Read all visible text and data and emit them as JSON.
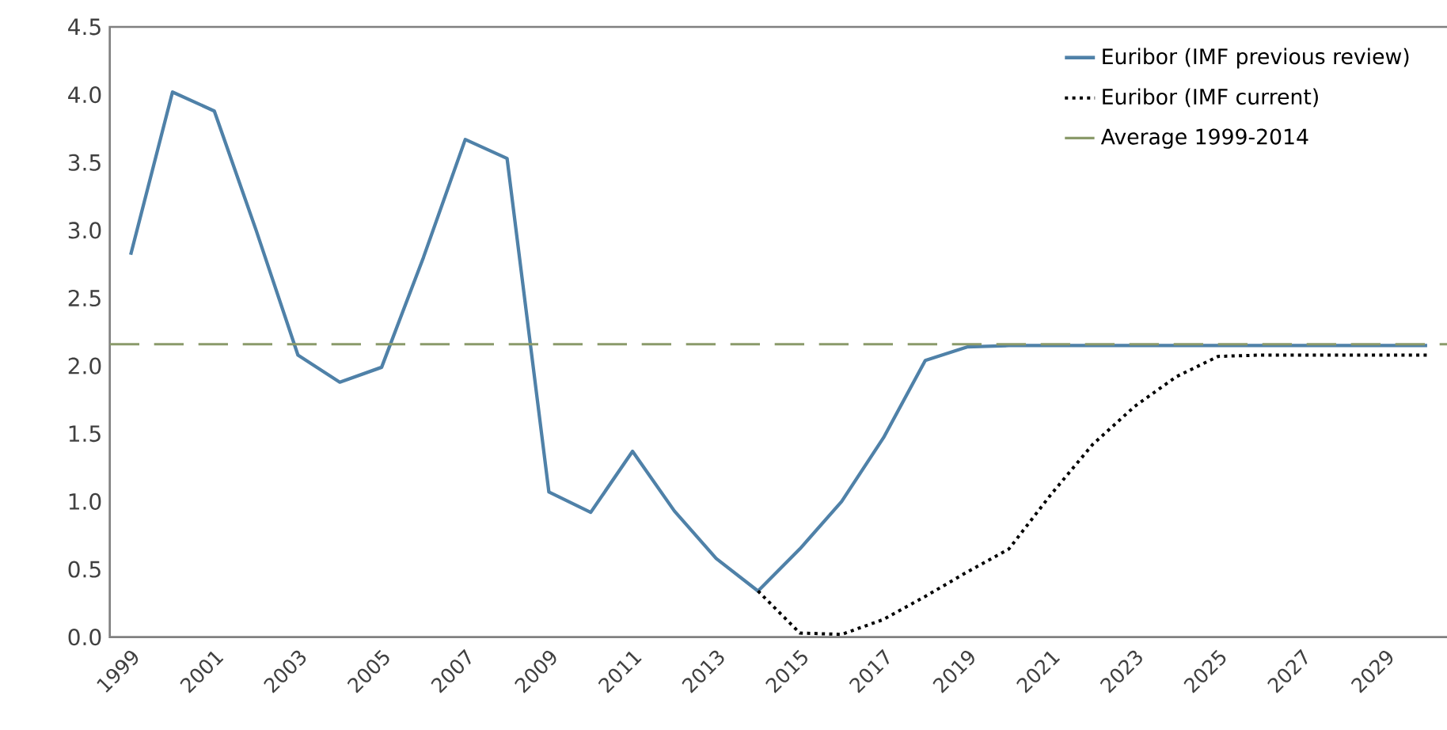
{
  "chart_data": {
    "type": "line",
    "categories": [
      "1999",
      null,
      "2001",
      null,
      "2003",
      null,
      "2005",
      null,
      "2007",
      null,
      "2009",
      null,
      "2011",
      null,
      "2013",
      null,
      "2015",
      null,
      "2017",
      null,
      "2019",
      null,
      "2021",
      null,
      "2023",
      null,
      "2025",
      null,
      "2027",
      null,
      "2029",
      null
    ],
    "series": [
      {
        "name": "Euribor (IMF previous review)",
        "color": "#4f81a8",
        "line_style": "solid",
        "values": [
          2.82,
          4.02,
          3.88,
          3.0,
          2.08,
          1.88,
          1.99,
          2.8,
          3.67,
          3.53,
          1.07,
          0.92,
          1.37,
          0.93,
          0.58,
          0.34,
          0.65,
          1.0,
          1.47,
          2.04,
          2.14,
          2.15,
          2.15,
          2.15,
          2.15,
          2.15,
          2.15,
          2.15,
          2.15,
          2.15,
          2.15,
          2.15
        ]
      },
      {
        "name": "Euribor (IMF current)",
        "color": "#000000",
        "line_style": "dotted",
        "values": [
          null,
          null,
          null,
          null,
          null,
          null,
          null,
          null,
          null,
          null,
          null,
          null,
          null,
          null,
          null,
          0.34,
          0.03,
          0.02,
          0.13,
          0.3,
          0.48,
          0.65,
          1.05,
          1.42,
          1.7,
          1.92,
          2.07,
          2.08,
          2.08,
          2.08,
          2.08,
          2.08
        ]
      }
    ],
    "ref_lines": [
      {
        "axis": "y",
        "value": 2.16,
        "label": "Average 1999-2014",
        "color": "#8a9a6a",
        "line_style": "dashed"
      }
    ],
    "ylim": [
      0,
      4.5
    ],
    "yticks": [
      {
        "value": 0,
        "label": "0.0"
      },
      0.5,
      {
        "value": 1,
        "label": "1.0"
      },
      1.5,
      {
        "value": 2,
        "label": "2.0"
      },
      2.5,
      {
        "value": 3,
        "label": "3.0"
      },
      3.5,
      {
        "value": 4,
        "label": "4.0"
      },
      4.5
    ],
    "grid": false,
    "legend": "top right"
  }
}
